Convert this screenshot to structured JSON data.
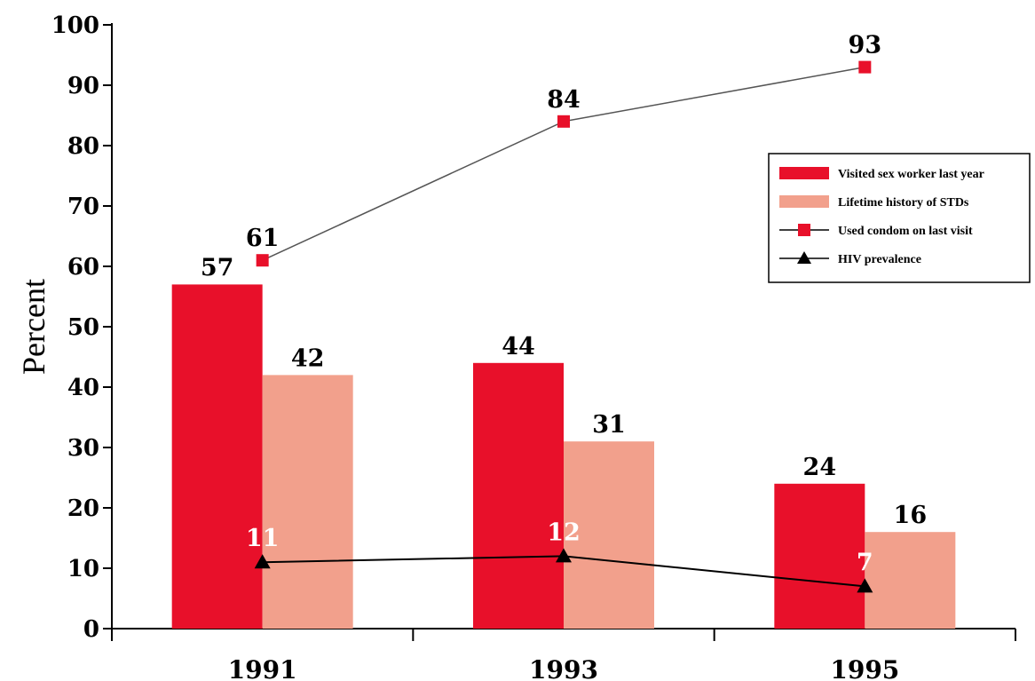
{
  "chart_data": {
    "type": "bar",
    "categories": [
      "1991",
      "1993",
      "1995"
    ],
    "ylabel": "Percent",
    "ylim": [
      0,
      100
    ],
    "yticks": [
      0,
      10,
      20,
      30,
      40,
      50,
      60,
      70,
      80,
      90,
      100
    ],
    "grid": false,
    "legend_position": "right",
    "series": [
      {
        "name": "Visited sex worker last year",
        "kind": "bar",
        "color": "#e8102a",
        "values": [
          57,
          44,
          24
        ],
        "labels": [
          "57",
          "44",
          "24"
        ]
      },
      {
        "name": "Lifetime history of STDs",
        "kind": "bar",
        "color": "#f2a08c",
        "values": [
          42,
          31,
          16
        ],
        "labels": [
          "42",
          "31",
          "16"
        ]
      },
      {
        "name": "Used condom on last visit",
        "kind": "line",
        "marker": "square",
        "color": "#e8102a",
        "values": [
          61,
          84,
          93
        ],
        "labels": [
          "61",
          "84",
          "93"
        ]
      },
      {
        "name": "HIV prevalence",
        "kind": "line",
        "marker": "triangle",
        "color": "#000000",
        "values": [
          11,
          12,
          7
        ],
        "labels": [
          "11",
          "12",
          "7"
        ]
      }
    ]
  }
}
